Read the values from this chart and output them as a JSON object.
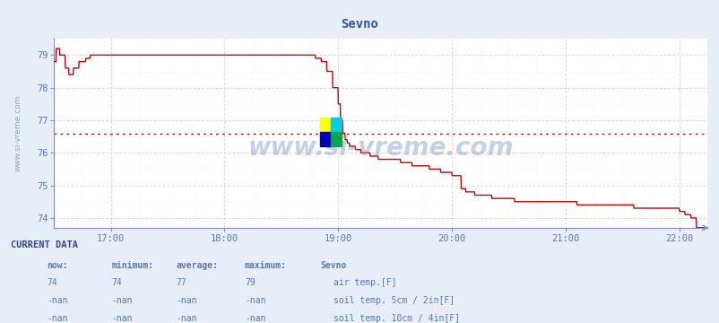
{
  "title": "Sevno",
  "title_color": "#3355aa",
  "bg_color": "#e8eef8",
  "plot_bg_color": "#ffffff",
  "grid_color_major": "#ffaaaa",
  "grid_color_minor": "#ffdddd",
  "axis_color": "#8888cc",
  "line_color": "#cc0000",
  "avg_line_y": 76.6,
  "avg_line_color": "#cc0000",
  "xlim_hours": [
    16.5,
    22.25
  ],
  "ylim": [
    73.7,
    79.5
  ],
  "yticks": [
    74,
    75,
    76,
    77,
    78,
    79
  ],
  "xticks_hours": [
    17,
    18,
    19,
    20,
    21,
    22
  ],
  "xtick_labels": [
    "17:00",
    "18:00",
    "19:00",
    "20:00",
    "21:00",
    "22:00"
  ],
  "font_color_blue": "#5577bb",
  "font_color_dark": "#334499",
  "font_color_header": "#3366aa",
  "watermark_color": "#7799cc",
  "legend_colors": {
    "air temp.[F]": "#cc0000",
    "soil temp. 5cm / 2in[F]": "#bbbbaa",
    "soil temp. 10cm / 4in[F]": "#bb8800",
    "soil temp. 20cm / 8in[F]": "#cc8800",
    "soil temp. 30cm / 12in[F]": "#777755",
    "soil temp. 50cm / 20in[F]": "#553311"
  },
  "logo_colors": [
    "#ffff00",
    "#00ccee",
    "#0000bb",
    "#00aa44"
  ],
  "current_data_values": [
    "74",
    "74",
    "77",
    "79"
  ],
  "nan_rows": 5
}
